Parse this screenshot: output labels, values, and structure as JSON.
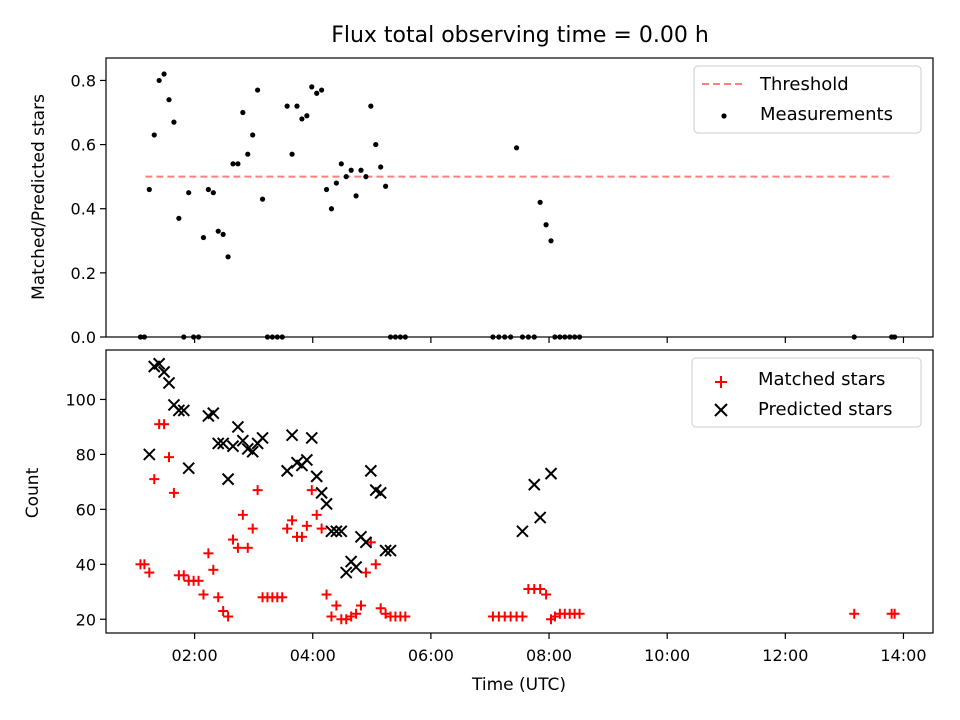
{
  "figure": {
    "title": "Flux total observing time = 0.00 h",
    "xlabel": "Time (UTC)",
    "x_ticks": [
      "02:00",
      "04:00",
      "06:00",
      "08:00",
      "10:00",
      "12:00",
      "14:00"
    ]
  },
  "colors": {
    "threshold": "#ff7f7f",
    "measurement": "#000000",
    "matched": "#ff0000",
    "predicted": "#000000"
  },
  "chart_data": [
    {
      "type": "scatter",
      "ylabel": "Matched/Predicted stars",
      "xlim": [
        "00:30",
        "14:30"
      ],
      "ylim": [
        0,
        0.87
      ],
      "y_ticks": [
        "0.0",
        "0.2",
        "0.4",
        "0.6",
        "0.8"
      ],
      "legend": {
        "placement": "top-right",
        "entries": [
          "Threshold",
          "Measurements"
        ]
      },
      "threshold": {
        "name": "Threshold",
        "value": 0.5,
        "x_start": "01:10",
        "x_end": "13:50",
        "style": "dashed"
      },
      "series": [
        {
          "name": "Measurements",
          "x": [
            "01:05",
            "01:09",
            "01:14",
            "01:19",
            "01:24",
            "01:29",
            "01:34",
            "01:39",
            "01:44",
            "01:49",
            "01:54",
            "01:59",
            "02:04",
            "02:09",
            "02:14",
            "02:19",
            "02:24",
            "02:29",
            "02:34",
            "02:39",
            "02:44",
            "02:49",
            "02:54",
            "02:59",
            "03:04",
            "03:09",
            "03:14",
            "03:19",
            "03:24",
            "03:29",
            "03:34",
            "03:39",
            "03:44",
            "03:49",
            "03:54",
            "03:59",
            "04:04",
            "04:09",
            "04:14",
            "04:19",
            "04:24",
            "04:29",
            "04:34",
            "04:39",
            "04:44",
            "04:49",
            "04:54",
            "04:59",
            "05:04",
            "05:09",
            "05:14",
            "05:19",
            "05:24",
            "05:29",
            "05:34",
            "07:03",
            "07:09",
            "07:15",
            "07:21",
            "07:27",
            "07:33",
            "07:39",
            "07:45",
            "07:51",
            "07:57",
            "08:02",
            "08:06",
            "08:11",
            "08:16",
            "08:21",
            "08:26",
            "08:31",
            "13:10",
            "13:48",
            "13:51"
          ],
          "y": [
            0,
            0,
            0.46,
            0.63,
            0.8,
            0.82,
            0.74,
            0.67,
            0.37,
            0,
            0.45,
            0,
            0,
            0.31,
            0.46,
            0.45,
            0.33,
            0.32,
            0.25,
            0.54,
            0.54,
            0.7,
            0.57,
            0.63,
            0.77,
            0.43,
            0,
            0,
            0,
            0,
            0.72,
            0.57,
            0.72,
            0.68,
            0.69,
            0.78,
            0.76,
            0.77,
            0.46,
            0.4,
            0.48,
            0.54,
            0.5,
            0.52,
            0.44,
            0.52,
            0.5,
            0.72,
            0.6,
            0.53,
            0.47,
            0,
            0,
            0,
            0,
            0,
            0,
            0,
            0,
            0.59,
            0,
            0,
            0,
            0.42,
            0.35,
            0.3,
            0,
            0,
            0,
            0,
            0,
            0,
            0,
            0,
            0
          ]
        }
      ]
    },
    {
      "type": "scatter",
      "ylabel": "Count",
      "xlim": [
        "00:30",
        "14:30"
      ],
      "ylim": [
        15,
        118
      ],
      "y_ticks": [
        "20",
        "40",
        "60",
        "80",
        "100"
      ],
      "legend": {
        "placement": "top-right",
        "entries": [
          "Matched stars",
          "Predicted stars"
        ]
      },
      "series": [
        {
          "name": "Matched stars",
          "x": [
            "01:05",
            "01:09",
            "01:14",
            "01:19",
            "01:24",
            "01:29",
            "01:34",
            "01:39",
            "01:44",
            "01:49",
            "01:54",
            "01:59",
            "02:04",
            "02:09",
            "02:14",
            "02:19",
            "02:24",
            "02:29",
            "02:34",
            "02:39",
            "02:44",
            "02:49",
            "02:54",
            "02:59",
            "03:04",
            "03:09",
            "03:14",
            "03:19",
            "03:24",
            "03:29",
            "03:34",
            "03:39",
            "03:44",
            "03:49",
            "03:54",
            "03:59",
            "04:04",
            "04:09",
            "04:14",
            "04:19",
            "04:24",
            "04:29",
            "04:34",
            "04:39",
            "04:44",
            "04:49",
            "04:54",
            "04:59",
            "05:04",
            "05:09",
            "05:14",
            "05:19",
            "05:24",
            "05:29",
            "05:34",
            "07:03",
            "07:09",
            "07:15",
            "07:21",
            "07:27",
            "07:33",
            "07:39",
            "07:45",
            "07:51",
            "07:57",
            "08:02",
            "08:06",
            "08:11",
            "08:16",
            "08:21",
            "08:26",
            "08:31",
            "13:10",
            "13:48",
            "13:51"
          ],
          "y": [
            40,
            40,
            37,
            71,
            91,
            91,
            79,
            66,
            36,
            36,
            34,
            34,
            34,
            29,
            44,
            38,
            28,
            23,
            21,
            49,
            46,
            58,
            46,
            53,
            67,
            28,
            28,
            28,
            28,
            28,
            53,
            56,
            50,
            50,
            54,
            67,
            58,
            53,
            29,
            21,
            25,
            20,
            20,
            21,
            22,
            25,
            37,
            48,
            40,
            24,
            22,
            21,
            21,
            21,
            21,
            21,
            21,
            21,
            21,
            21,
            21,
            31,
            31,
            31,
            29,
            20,
            21,
            22,
            22,
            22,
            22,
            22,
            22,
            22,
            22
          ]
        },
        {
          "name": "Predicted stars",
          "x": [
            "01:14",
            "01:19",
            "01:24",
            "01:29",
            "01:34",
            "01:39",
            "01:44",
            "01:49",
            "01:54",
            "02:14",
            "02:19",
            "02:24",
            "02:29",
            "02:34",
            "02:39",
            "02:44",
            "02:49",
            "02:54",
            "02:59",
            "03:04",
            "03:09",
            "03:34",
            "03:39",
            "03:44",
            "03:49",
            "03:54",
            "03:59",
            "04:04",
            "04:09",
            "04:14",
            "04:19",
            "04:24",
            "04:29",
            "04:34",
            "04:39",
            "04:44",
            "04:49",
            "04:54",
            "04:59",
            "05:04",
            "05:09",
            "05:14",
            "05:19",
            "07:33",
            "07:45",
            "07:51",
            "08:02"
          ],
          "y": [
            80,
            112,
            113,
            110,
            106,
            98,
            96,
            96,
            75,
            94,
            95,
            84,
            84,
            71,
            83,
            90,
            85,
            82,
            81,
            84,
            86,
            74,
            87,
            77,
            76,
            78,
            86,
            72,
            66,
            62,
            52,
            52,
            52,
            37,
            41,
            39,
            50,
            48,
            74,
            67,
            66,
            45,
            45,
            52,
            69,
            57,
            73
          ]
        }
      ]
    }
  ]
}
